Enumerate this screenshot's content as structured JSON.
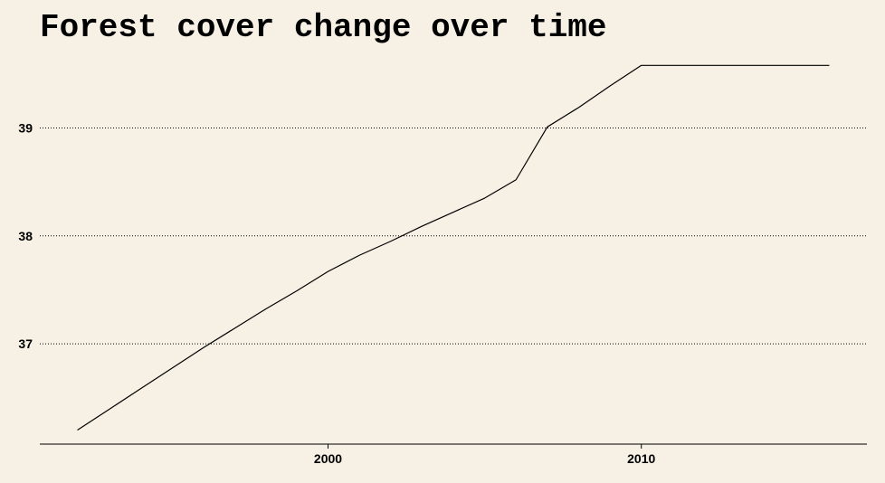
{
  "chart_data": {
    "type": "line",
    "title": "Forest cover change over time",
    "xlabel": "",
    "ylabel": "",
    "xlim": [
      1990.8,
      2017.2
    ],
    "ylim": [
      36.07,
      39.7
    ],
    "x_ticks": [
      2000,
      2010
    ],
    "y_ticks": [
      37,
      38,
      39
    ],
    "grid": "horizontal dotted",
    "legend": "none",
    "series": [
      {
        "color": "#000000",
        "x": [
          1992,
          1993,
          1994,
          1995,
          1996,
          1997,
          1998,
          1999,
          2000,
          2001,
          2002,
          2003,
          2004,
          2005,
          2006,
          2007,
          2008,
          2009,
          2010,
          2011,
          2012,
          2013,
          2014,
          2015,
          2016
        ],
        "y": [
          36.2,
          36.39,
          36.58,
          36.77,
          36.96,
          37.14,
          37.32,
          37.49,
          37.67,
          37.82,
          37.95,
          38.09,
          38.22,
          38.35,
          38.52,
          39.01,
          39.19,
          39.39,
          39.58,
          39.58,
          39.58,
          39.58,
          39.58,
          39.58,
          39.58
        ]
      }
    ]
  },
  "colors": {
    "background": "#f6f1e4",
    "line": "#000000",
    "grid": "#000000"
  }
}
